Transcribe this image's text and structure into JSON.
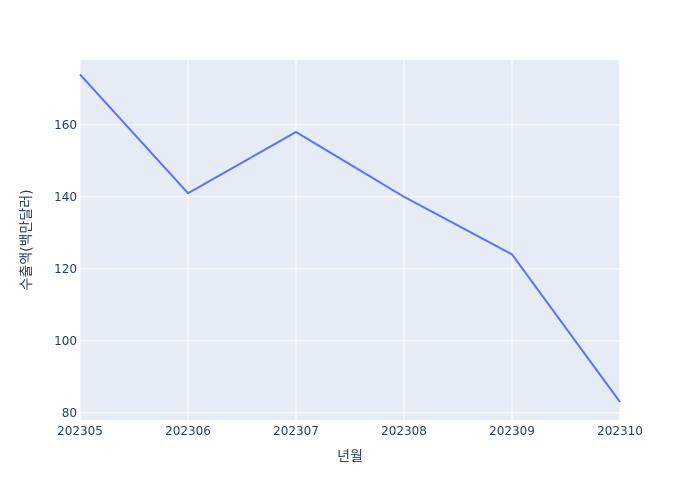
{
  "chart_data": {
    "type": "line",
    "title": "",
    "xlabel": "년월",
    "ylabel": "수출액(백만달러)",
    "x": [
      "202305",
      "202306",
      "202307",
      "202308",
      "202309",
      "202310"
    ],
    "series": [
      {
        "values": [
          174,
          141,
          158,
          140,
          124,
          83
        ],
        "color": "#636efa"
      }
    ],
    "ylim": [
      78,
      178
    ],
    "yticks": [
      80,
      100,
      120,
      140,
      160
    ],
    "grid": true,
    "colors": {
      "plot_bg": "#e5ecf6",
      "grid": "#ffffff",
      "text": "#2a3f5f"
    }
  }
}
